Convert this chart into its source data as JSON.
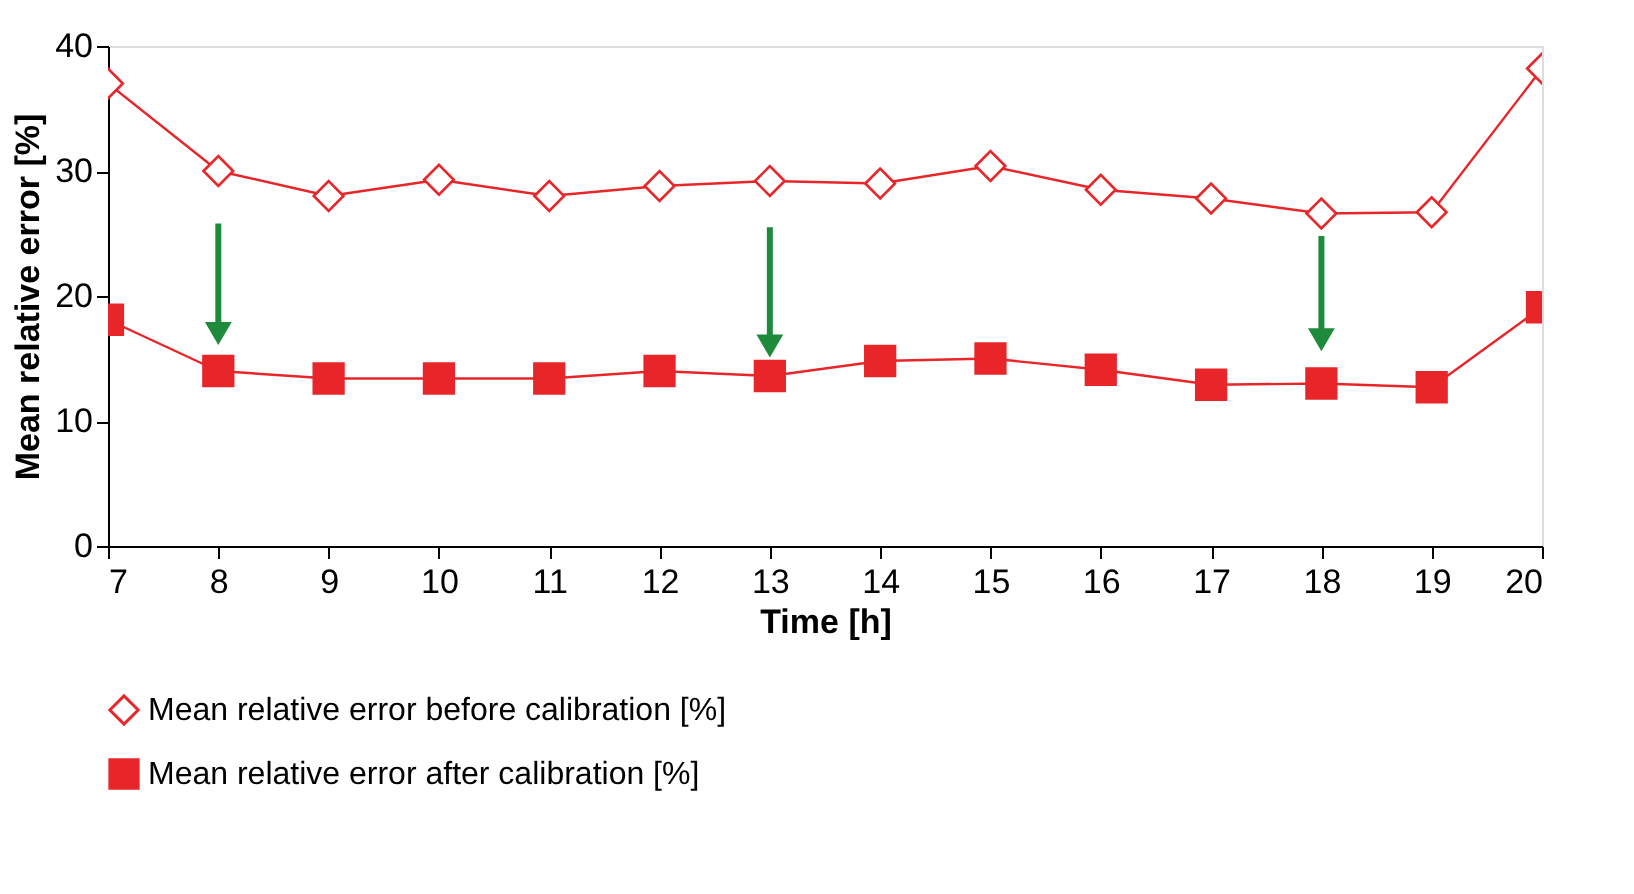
{
  "chart_data": {
    "type": "line",
    "xlabel": "Time [h]",
    "ylabel": "Mean relative error [%]",
    "x": [
      7,
      8,
      9,
      10,
      11,
      12,
      13,
      14,
      15,
      16,
      17,
      18,
      19,
      20
    ],
    "series": [
      {
        "name": "Mean relative error before calibration [%]",
        "color": "#e8262a",
        "marker": "diamond",
        "values": [
          37,
          30,
          28,
          29.3,
          28,
          28.8,
          29.2,
          29,
          30.4,
          28.5,
          27.8,
          26.6,
          26.7,
          38.2
        ]
      },
      {
        "name": "Mean relative error after calibration [%]",
        "color": "#e8262a",
        "marker": "square",
        "values": [
          18.1,
          14,
          13.4,
          13.4,
          13.4,
          14,
          13.6,
          14.8,
          15,
          14.1,
          12.9,
          13,
          12.7,
          19.1
        ]
      }
    ],
    "xlim": [
      7,
      20
    ],
    "xticks": [
      7,
      8,
      9,
      10,
      11,
      12,
      13,
      14,
      15,
      16,
      17,
      18,
      19,
      20
    ],
    "ylim": [
      0,
      40
    ],
    "yticks": [
      0,
      10,
      20,
      30,
      40
    ],
    "grid": false,
    "legend": "bottom",
    "line_style": "solid"
  }
}
